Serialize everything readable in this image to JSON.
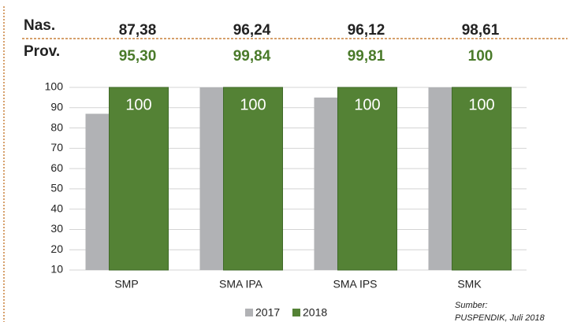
{
  "table": {
    "rows": [
      {
        "label": "Nas.",
        "cells": [
          "87,38",
          "96,24",
          "96,12",
          "98,61"
        ]
      },
      {
        "label": "Prov.",
        "cells": [
          "95,30",
          "99,84",
          "99,81",
          "100"
        ]
      }
    ]
  },
  "chart_data": {
    "type": "bar",
    "categories": [
      "SMP",
      "SMA IPA",
      "SMA IPS",
      "SMK"
    ],
    "series": [
      {
        "name": "2017",
        "color": "#b1b2b5",
        "values": [
          87,
          100,
          95,
          100
        ]
      },
      {
        "name": "2018",
        "color": "#548235",
        "values": [
          100,
          100,
          100,
          100
        ]
      }
    ],
    "ylim": [
      10,
      100
    ],
    "yticks": [
      10,
      20,
      30,
      40,
      50,
      60,
      70,
      80,
      90,
      100
    ],
    "grid": true,
    "legend": "bottom",
    "source": [
      "Sumber:",
      "PUSPENDIK, Juli 2018"
    ]
  }
}
